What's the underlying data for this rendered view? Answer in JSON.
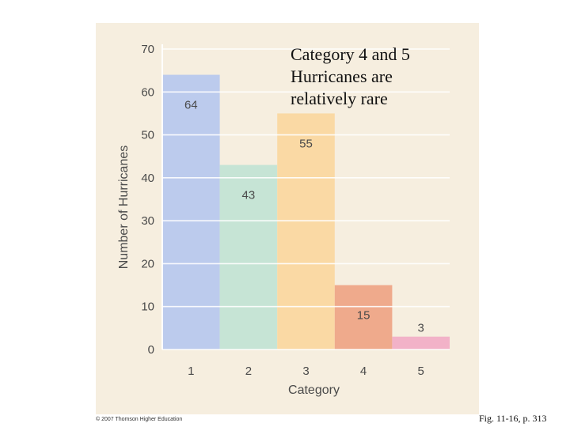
{
  "chart_data": {
    "type": "bar",
    "categories": [
      "1",
      "2",
      "3",
      "4",
      "5"
    ],
    "values": [
      64,
      43,
      55,
      15,
      3
    ],
    "data_labels": [
      "64",
      "43",
      "55",
      "15",
      "3"
    ],
    "xlabel": "Category",
    "ylabel": "Number of Hurricanes",
    "ylim": [
      0,
      70
    ],
    "yticks": [
      0,
      10,
      20,
      30,
      40,
      50,
      60,
      70
    ],
    "grid": true,
    "colors": [
      "#bccbed",
      "#c6e4d5",
      "#fad9a4",
      "#efaa8c",
      "#f2b2c8"
    ]
  },
  "annotation": "Category 4 and 5\nHurricanes are\nrelatively rare",
  "copyright": "© 2007 Thomson Higher Education",
  "caption": "Fig. 11-16, p. 313"
}
